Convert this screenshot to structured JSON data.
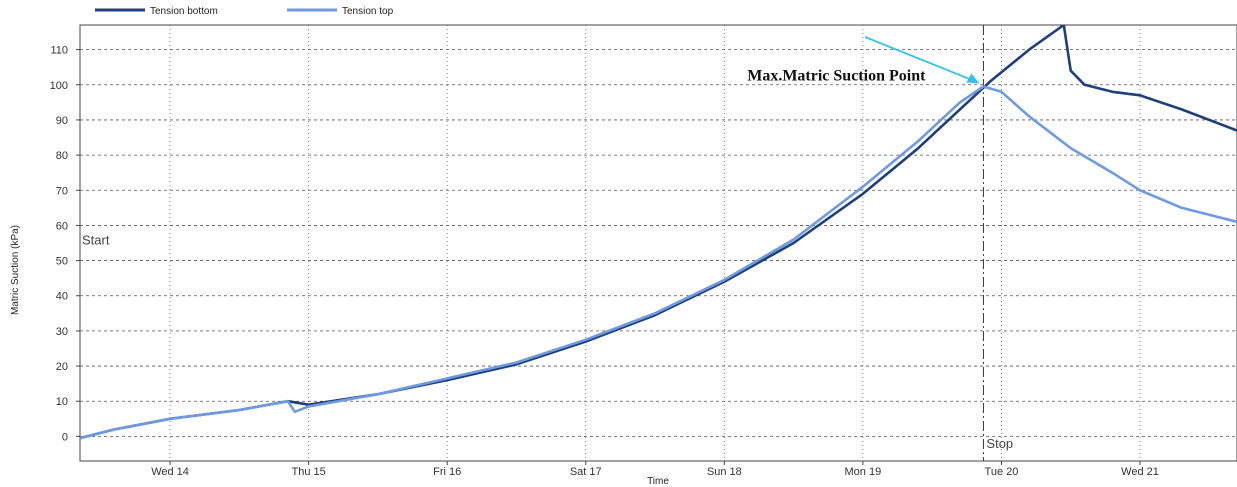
{
  "chart_data": {
    "type": "line",
    "xlabel": "Time",
    "ylabel": "Matric Suction (kPa)",
    "ylim": [
      -7,
      117
    ],
    "yticks": [
      0,
      10,
      20,
      30,
      40,
      50,
      60,
      70,
      80,
      90,
      100,
      110
    ],
    "xlim": [
      13.35,
      21.7
    ],
    "x_unit": "day of month",
    "xticks": [
      {
        "x": 14,
        "label": "Wed 14"
      },
      {
        "x": 15,
        "label": "Thu 15"
      },
      {
        "x": 16,
        "label": "Fri 16"
      },
      {
        "x": 17,
        "label": "Sat 17"
      },
      {
        "x": 18,
        "label": "Sun 18"
      },
      {
        "x": 19,
        "label": "Mon 19"
      },
      {
        "x": 20,
        "label": "Tue 20"
      },
      {
        "x": 21,
        "label": "Wed 21"
      }
    ],
    "grid": true,
    "legend_position": "top-left",
    "series": [
      {
        "name": "Tension bottom",
        "color": "#1f3f7a",
        "x": [
          13.35,
          13.6,
          14.0,
          14.5,
          14.85,
          15.0,
          15.5,
          16.0,
          16.5,
          17.0,
          17.5,
          18.0,
          18.5,
          19.0,
          19.4,
          19.7,
          19.92,
          20.2,
          20.45,
          20.5,
          20.6,
          20.8,
          21.0,
          21.3,
          21.7
        ],
        "y": [
          -0.5,
          2,
          5,
          7.5,
          10,
          9,
          12,
          16,
          20.5,
          27,
          34.5,
          44,
          55,
          69,
          82,
          93,
          101,
          110,
          117,
          104,
          100,
          98,
          97,
          93,
          87
        ]
      },
      {
        "name": "Tension top",
        "color": "#6f9ae0",
        "x": [
          13.35,
          13.6,
          14.0,
          14.5,
          14.85,
          14.9,
          15.0,
          15.5,
          16.0,
          16.5,
          17.0,
          17.5,
          18.0,
          18.5,
          19.0,
          19.4,
          19.7,
          19.87,
          20.0,
          20.2,
          20.5,
          20.8,
          21.0,
          21.3,
          21.7
        ],
        "y": [
          -0.5,
          2,
          5,
          7.5,
          10,
          7,
          8.5,
          12,
          16.5,
          21,
          27.5,
          35,
          44.5,
          56,
          71,
          84,
          95,
          99.5,
          98,
          91,
          82,
          75,
          70,
          65,
          61
        ]
      }
    ],
    "annotations": [
      {
        "text": "Max.Matric Suction Point",
        "x": 19.87,
        "y": 99.5
      },
      {
        "text": "Start",
        "x": 13.35,
        "y": 56
      },
      {
        "text": "Stop",
        "x": 19.87,
        "y": -1
      }
    ],
    "vline_x": 19.87
  }
}
